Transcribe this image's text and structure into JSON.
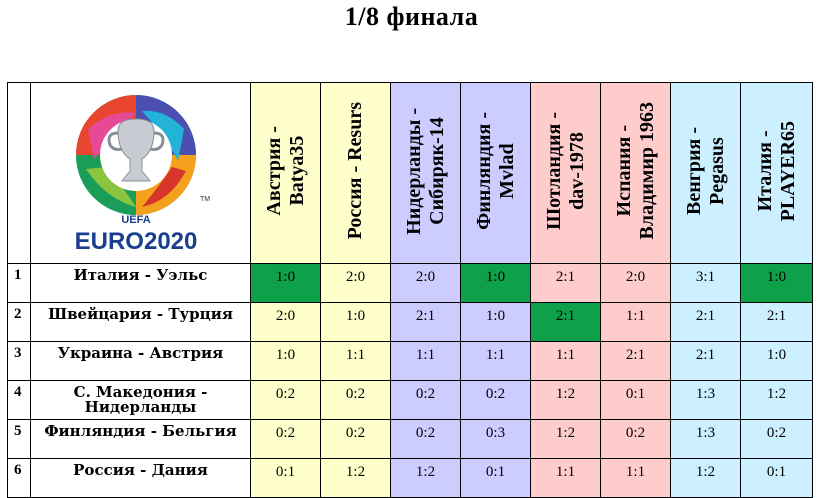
{
  "title": "1/8 финала",
  "logo": {
    "icon": "euro2020-logo-icon",
    "uefa_text": "UEFA",
    "wordmark": "EURO2020",
    "tm": "TM"
  },
  "columns": [
    {
      "name": "Австрия - Batya35",
      "color": "#ffffcc"
    },
    {
      "name": "Россия - Resurs",
      "color": "#ffffcc"
    },
    {
      "name": "Нидерланды - Сибиряк-14",
      "color": "#ccccff"
    },
    {
      "name": "Финляндия - Mvlad",
      "color": "#ccccff"
    },
    {
      "name": "Шотландия - dav-1978",
      "color": "#ffcccc"
    },
    {
      "name": "Испания - Владимир 1963",
      "color": "#ffcccc"
    },
    {
      "name": "Венгрия - Pegasus",
      "color": "#ccf0ff"
    },
    {
      "name": "Италия - PLAYER65",
      "color": "#ccf0ff"
    }
  ],
  "column_lines": [
    [
      "Австрия -",
      "Batya35"
    ],
    [
      "Россия - Resurs"
    ],
    [
      "Нидерланды -",
      "Сибиряк-14"
    ],
    [
      "Финляндия -",
      "Mvlad"
    ],
    [
      "Шотландия -",
      "dav-1978"
    ],
    [
      "Испания -",
      "Владимир 1963"
    ],
    [
      "Венгрия -",
      "Pegasus"
    ],
    [
      "Италия -",
      "PLAYER65"
    ]
  ],
  "highlight_color": "#0fa04a",
  "rows": [
    {
      "num": "1",
      "match": "Италия - Уэльс",
      "scores": [
        "1:0",
        "2:0",
        "2:0",
        "1:0",
        "2:1",
        "2:0",
        "3:1",
        "1:0"
      ]
    },
    {
      "num": "2",
      "match": "Швейцария - Турция",
      "scores": [
        "2:0",
        "1:0",
        "2:1",
        "1:0",
        "2:1",
        "1:1",
        "2:1",
        "2:1"
      ]
    },
    {
      "num": "3",
      "match": "Украина - Австрия",
      "scores": [
        "1:0",
        "1:1",
        "1:1",
        "1:1",
        "1:1",
        "2:1",
        "2:1",
        "1:0"
      ]
    },
    {
      "num": "4",
      "match": "С. Македония - Нидерланды",
      "scores": [
        "0:2",
        "0:2",
        "0:2",
        "0:2",
        "1:2",
        "0:1",
        "1:3",
        "1:2"
      ]
    },
    {
      "num": "5",
      "match": "Финляндия - Бельгия",
      "scores": [
        "0:2",
        "0:2",
        "0:2",
        "0:3",
        "1:2",
        "0:2",
        "1:3",
        "0:2"
      ]
    },
    {
      "num": "6",
      "match": "Россия - Дания",
      "scores": [
        "0:1",
        "1:2",
        "1:2",
        "0:1",
        "1:1",
        "1:1",
        "1:2",
        "0:1"
      ]
    }
  ],
  "highlighted": [
    [
      0,
      0
    ],
    [
      0,
      3
    ],
    [
      0,
      7
    ],
    [
      1,
      4
    ]
  ]
}
